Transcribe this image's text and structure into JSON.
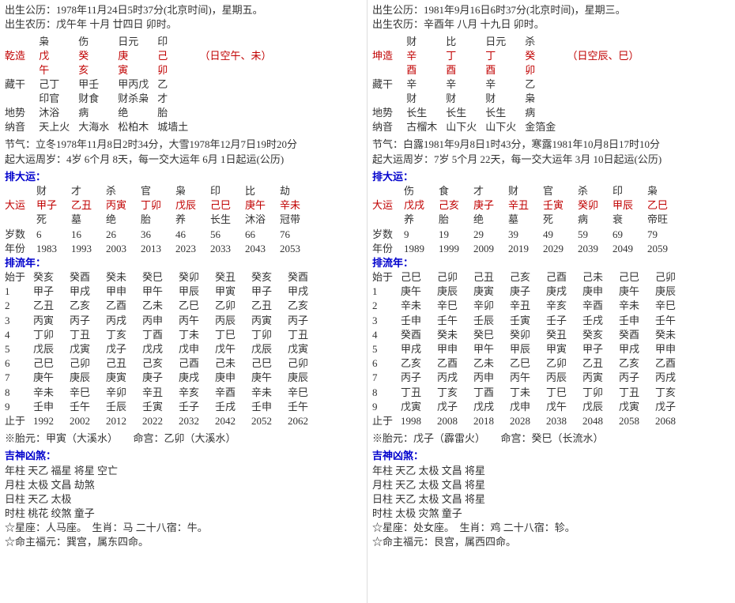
{
  "left": {
    "birth_solar": "出生公历：1978年11月24日5时37分(北京时间)，星期五。",
    "birth_lunar": "出生农历：戊午年 十月 廿四日 卯时。",
    "zao_label": "乾造",
    "kong_note": "（日空午、未）",
    "ten_gods": [
      "枭",
      "伤",
      "日元",
      "印"
    ],
    "stems": [
      "戊",
      "癸",
      "庚",
      "己"
    ],
    "branches": [
      "午",
      "亥",
      "寅",
      "卯"
    ],
    "canggan_label": "藏干",
    "canggan": [
      "己丁",
      "甲壬",
      "甲丙戊",
      "乙"
    ],
    "canggan2": [
      "印官",
      "财食",
      "财杀枭",
      "才"
    ],
    "dishi_label": "地势",
    "dishi": [
      "沐浴",
      "病",
      "绝",
      "胎"
    ],
    "nayin_label": "纳音",
    "nayin": [
      "天上火",
      "大海水",
      "松柏木",
      "城墙土"
    ],
    "jieqi": "节气：立冬1978年11月8日2时34分，大雪1978年12月7日19时20分",
    "qidayun": "起大运周岁：4岁 6个月 8天，每一交大运年 6月 1日起运(公历)",
    "paidayun": "排大运：",
    "dayun": {
      "row_labels": [
        "",
        "大运",
        "",
        "岁数",
        "年份"
      ],
      "ten_gods": [
        "财",
        "才",
        "杀",
        "官",
        "枭",
        "印",
        "比",
        "劫"
      ],
      "gz": [
        "甲子",
        "乙丑",
        "丙寅",
        "丁卯",
        "戊辰",
        "己巳",
        "庚午",
        "辛未"
      ],
      "state": [
        "死",
        "墓",
        "绝",
        "胎",
        "养",
        "长生",
        "沐浴",
        "冠带"
      ],
      "age": [
        "6",
        "16",
        "26",
        "36",
        "46",
        "56",
        "66",
        "76"
      ],
      "year": [
        "1983",
        "1993",
        "2003",
        "2013",
        "2023",
        "2033",
        "2043",
        "2053"
      ]
    },
    "pailiunian": "排流年：",
    "liunian": {
      "row_labels": [
        "始于",
        "1",
        "2",
        "3",
        "4",
        "5",
        "6",
        "7",
        "8",
        "9",
        "止于"
      ],
      "cols": [
        [
          "癸亥",
          "甲子",
          "乙丑",
          "丙寅",
          "丁卯",
          "戊辰",
          "己巳",
          "庚午",
          "辛未",
          "壬申",
          "1992"
        ],
        [
          "癸酉",
          "甲戌",
          "乙亥",
          "丙子",
          "丁丑",
          "戊寅",
          "己卯",
          "庚辰",
          "辛巳",
          "壬午",
          "2002"
        ],
        [
          "癸未",
          "甲申",
          "乙酉",
          "丙戌",
          "丁亥",
          "戊子",
          "己丑",
          "庚寅",
          "辛卯",
          "壬辰",
          "2012"
        ],
        [
          "癸巳",
          "甲午",
          "乙未",
          "丙申",
          "丁酉",
          "戊戌",
          "己亥",
          "庚子",
          "辛丑",
          "壬寅",
          "2022"
        ],
        [
          "癸卯",
          "甲辰",
          "乙巳",
          "丙午",
          "丁未",
          "戊申",
          "己酉",
          "庚戌",
          "辛亥",
          "壬子",
          "2032"
        ],
        [
          "癸丑",
          "甲寅",
          "乙卯",
          "丙辰",
          "丁巳",
          "戊午",
          "己未",
          "庚申",
          "辛酉",
          "壬戌",
          "2042"
        ],
        [
          "癸亥",
          "甲子",
          "乙丑",
          "丙寅",
          "丁卯",
          "戊辰",
          "己巳",
          "庚午",
          "辛未",
          "壬申",
          "2052"
        ],
        [
          "癸酉",
          "甲戌",
          "乙亥",
          "丙子",
          "丁丑",
          "戊寅",
          "己卯",
          "庚辰",
          "辛巳",
          "壬午",
          "2062"
        ]
      ]
    },
    "taiyuan": "※胎元：甲寅（大溪水）　　命宫：乙卯（大溪水）",
    "jishen_title": "吉神凶煞：",
    "jishen": [
      "年柱 天乙 福星 将星 空亡",
      "月柱 太极 文昌 劫煞",
      "日柱 天乙 太极",
      "时柱 桃花 绞煞 童子",
      "☆星座：人马座。　生肖：马 二十八宿：牛。",
      "☆命主福元：巽宫，属东四命。"
    ]
  },
  "right": {
    "birth_solar": "出生公历：1981年9月16日6时37分(北京时间)，星期三。",
    "birth_lunar": "出生农历：辛酉年 八月 十九日 卯时。",
    "zao_label": "坤造",
    "kong_note": "（日空辰、巳）",
    "ten_gods": [
      "财",
      "比",
      "日元",
      "杀"
    ],
    "stems": [
      "辛",
      "丁",
      "丁",
      "癸"
    ],
    "branches": [
      "酉",
      "酉",
      "酉",
      "卯"
    ],
    "canggan_label": "藏干",
    "canggan": [
      "辛",
      "辛",
      "辛",
      "乙"
    ],
    "canggan2": [
      "财",
      "财",
      "财",
      "枭"
    ],
    "dishi_label": "地势",
    "dishi": [
      "长生",
      "长生",
      "长生",
      "病"
    ],
    "nayin_label": "纳音",
    "nayin": [
      "古榴木",
      "山下火",
      "山下火",
      "金箔金"
    ],
    "jieqi": "节气：白露1981年9月8日1时43分，寒露1981年10月8日17时10分",
    "qidayun": "起大运周岁：7岁 5个月 22天，每一交大运年 3月 10日起运(公历)",
    "paidayun": "排大运：",
    "dayun": {
      "ten_gods": [
        "伤",
        "食",
        "才",
        "财",
        "官",
        "杀",
        "印",
        "枭"
      ],
      "gz": [
        "戊戌",
        "己亥",
        "庚子",
        "辛丑",
        "壬寅",
        "癸卯",
        "甲辰",
        "乙巳"
      ],
      "state": [
        "养",
        "胎",
        "绝",
        "墓",
        "死",
        "病",
        "衰",
        "帝旺"
      ],
      "age": [
        "9",
        "19",
        "29",
        "39",
        "49",
        "59",
        "69",
        "79"
      ],
      "year": [
        "1989",
        "1999",
        "2009",
        "2019",
        "2029",
        "2039",
        "2049",
        "2059"
      ]
    },
    "pailiunian": "排流年：",
    "liunian": {
      "row_labels": [
        "始于",
        "1",
        "2",
        "3",
        "4",
        "5",
        "6",
        "7",
        "8",
        "9",
        "止于"
      ],
      "cols": [
        [
          "己巳",
          "庚午",
          "辛未",
          "壬申",
          "癸酉",
          "甲戌",
          "乙亥",
          "丙子",
          "丁丑",
          "戊寅",
          "1998"
        ],
        [
          "己卯",
          "庚辰",
          "辛巳",
          "壬午",
          "癸未",
          "甲申",
          "乙酉",
          "丙戌",
          "丁亥",
          "戊子",
          "2008"
        ],
        [
          "己丑",
          "庚寅",
          "辛卯",
          "壬辰",
          "癸巳",
          "甲午",
          "乙未",
          "丙申",
          "丁酉",
          "戊戌",
          "2018"
        ],
        [
          "己亥",
          "庚子",
          "辛丑",
          "壬寅",
          "癸卯",
          "甲辰",
          "乙巳",
          "丙午",
          "丁未",
          "戊申",
          "2028"
        ],
        [
          "己酉",
          "庚戌",
          "辛亥",
          "壬子",
          "癸丑",
          "甲寅",
          "乙卯",
          "丙辰",
          "丁巳",
          "戊午",
          "2038"
        ],
        [
          "己未",
          "庚申",
          "辛酉",
          "壬戌",
          "癸亥",
          "甲子",
          "乙丑",
          "丙寅",
          "丁卯",
          "戊辰",
          "2048"
        ],
        [
          "己巳",
          "庚午",
          "辛未",
          "壬申",
          "癸酉",
          "甲戌",
          "乙亥",
          "丙子",
          "丁丑",
          "戊寅",
          "2058"
        ],
        [
          "己卯",
          "庚辰",
          "辛巳",
          "壬午",
          "癸未",
          "甲申",
          "乙酉",
          "丙戌",
          "丁亥",
          "戊子",
          "2068"
        ]
      ]
    },
    "taiyuan": "※胎元：戊子（霹雷火）　　命宫：癸巳（长流水）",
    "jishen_title": "吉神凶煞：",
    "jishen": [
      "年柱 天乙 太极 文昌 将星",
      "月柱 天乙 太极 文昌 将星",
      "日柱 天乙 太极 文昌 将星",
      "时柱 太极 灾煞 童子",
      "☆星座：处女座。　生肖：鸡 二十八宿：轸。",
      "☆命主福元：艮宫，属西四命。"
    ]
  },
  "labels": {
    "dayun_label": "大运",
    "age_label": "岁数",
    "year_label": "年份"
  }
}
